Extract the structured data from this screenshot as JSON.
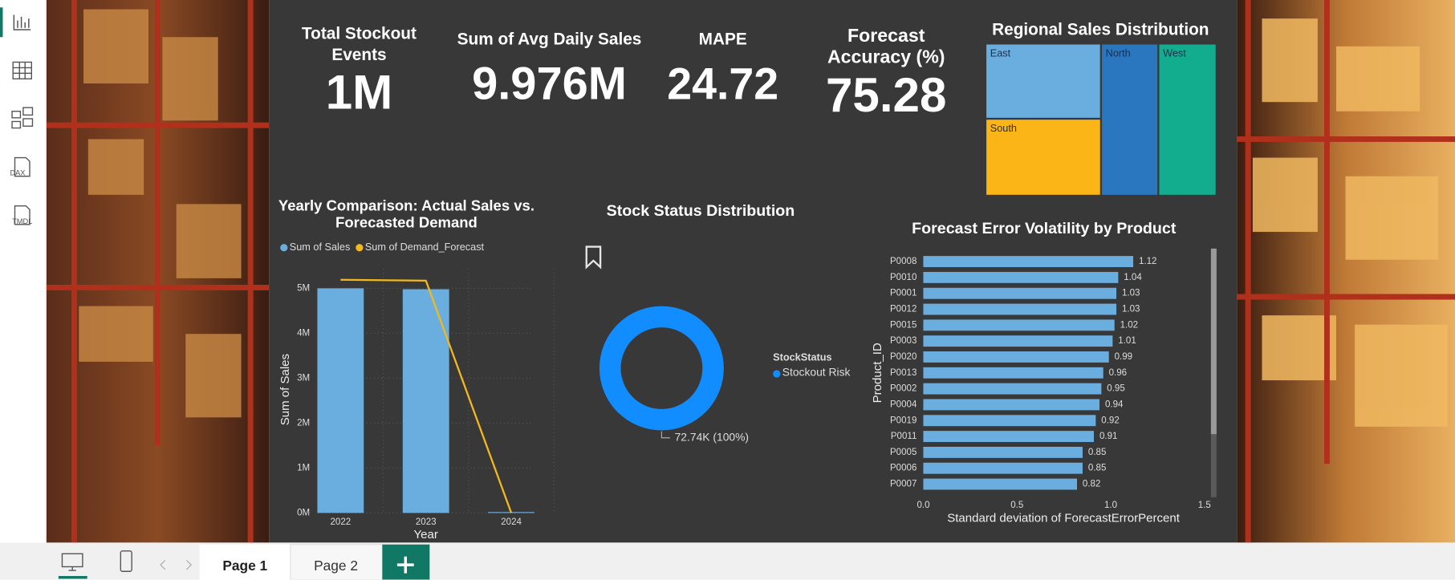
{
  "sidebar": {
    "icon_labels": [
      "DAX",
      "TMDL"
    ]
  },
  "cards": [
    {
      "title": "Total Stockout Events",
      "value": "1M"
    },
    {
      "title": "Sum of Avg Daily Sales",
      "value": "9.976M"
    },
    {
      "title": "MAPE",
      "value": "24.72"
    },
    {
      "title": "Forecast Accuracy (%)",
      "value": "75.28"
    }
  ],
  "chart_data": [
    {
      "type": "treemap",
      "title": "Regional Sales Distribution",
      "categories": [
        "East",
        "South",
        "North",
        "West"
      ],
      "values": [
        24.6,
        25.2,
        24.7,
        25.1
      ],
      "colors": [
        "#6aaee0",
        "#fbb516",
        "#2a77c0",
        "#12ad8e"
      ]
    },
    {
      "type": "combo",
      "title": "Yearly Comparison: Actual Sales vs. Forecasted Demand",
      "categories": [
        "2022",
        "2023",
        "2024"
      ],
      "series": [
        {
          "name": "Sum of Sales",
          "type": "bar",
          "color": "#6aaee0",
          "values": [
            5000000,
            4980000,
            20000
          ]
        },
        {
          "name": "Sum of Demand_Forecast",
          "type": "line",
          "color": "#f2b81d",
          "values": [
            5190000,
            5170000,
            0
          ]
        }
      ],
      "ylim": [
        0,
        5430000
      ],
      "yticks": [
        {
          "value": 0,
          "label": "0M"
        },
        {
          "value": 1000000,
          "label": "1M"
        },
        {
          "value": 2000000,
          "label": "2M"
        },
        {
          "value": 3000000,
          "label": "3M"
        },
        {
          "value": 4000000,
          "label": "4M"
        },
        {
          "value": 5000000,
          "label": "5M"
        }
      ],
      "xlabel": "Year",
      "ylabel": "Sum of Sales",
      "grid": true
    },
    {
      "type": "donut",
      "title": "Stock Status Distribution",
      "legend_title": "StockStatus",
      "categories": [
        "Stockout Risk"
      ],
      "values": [
        72740
      ],
      "value_labels": [
        "72.74K (100%)"
      ],
      "colors": [
        "#118dff"
      ]
    },
    {
      "type": "bar",
      "orientation": "horizontal",
      "title": "Forecast Error Volatility by Product",
      "categories": [
        "P0008",
        "P0010",
        "P0001",
        "P0012",
        "P0015",
        "P0003",
        "P0020",
        "P0013",
        "P0002",
        "P0004",
        "P0019",
        "P0011",
        "P0005",
        "P0006",
        "P0007"
      ],
      "values": [
        1.12,
        1.04,
        1.03,
        1.03,
        1.02,
        1.01,
        0.99,
        0.96,
        0.95,
        0.94,
        0.92,
        0.91,
        0.85,
        0.85,
        0.82
      ],
      "color": "#6aaee0",
      "xlim": [
        0,
        1.5
      ],
      "xticks": [
        {
          "value": 0,
          "label": "0.0"
        },
        0.5,
        {
          "value": 1,
          "label": "1.0"
        },
        1.5
      ],
      "xlabel": "Standard deviation of ForecastErrorPercent",
      "ylabel": "Product_ID"
    }
  ],
  "tabs": [
    "Page 1",
    "Page 2"
  ]
}
